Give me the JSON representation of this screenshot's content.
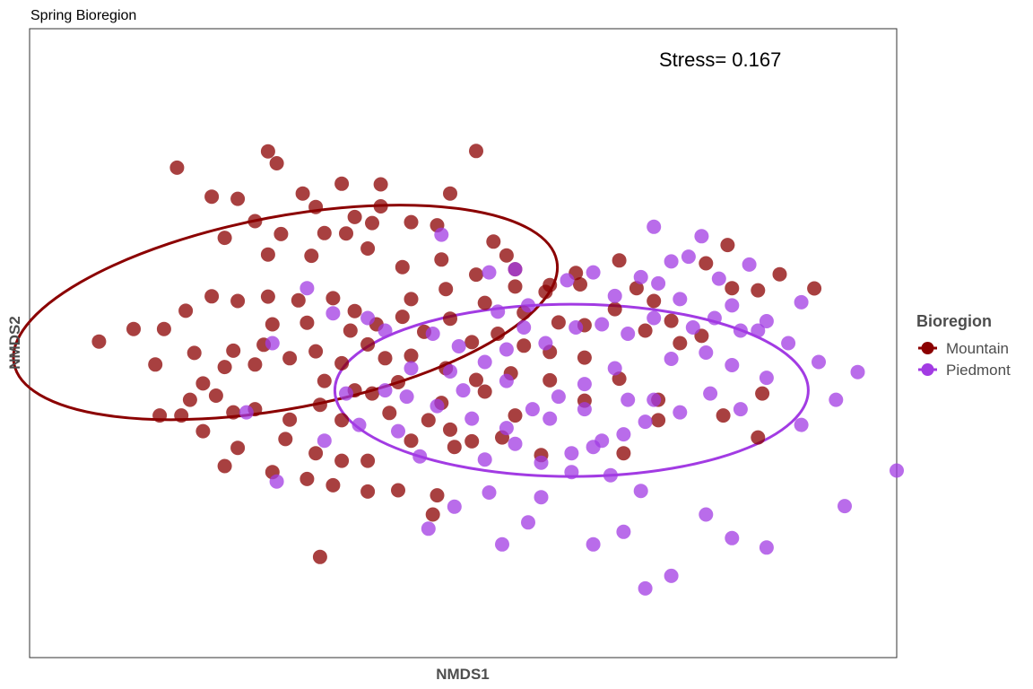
{
  "chart_data": {
    "type": "scatter",
    "title": "Spring Bioregion",
    "xlabel": "NMDS1",
    "ylabel": "NMDS2",
    "xlim": [
      -1.0,
      1.0
    ],
    "ylim": [
      -1.0,
      1.0
    ],
    "grid": false,
    "annotation": "Stress= 0.167",
    "legend": {
      "title": "Bioregion",
      "position": "right"
    },
    "series": [
      {
        "name": "Mountain",
        "color": "#8B0000",
        "ellipse": {
          "cx": -0.41,
          "cy": 0.098,
          "rx": 0.637,
          "ry": 0.305,
          "angle_deg": 10.7
        },
        "points": [
          [
            -0.19,
            0.505
          ],
          [
            -0.37,
            0.476
          ],
          [
            -0.52,
            0.459
          ],
          [
            -0.48,
            0.388
          ],
          [
            -0.34,
            0.433
          ],
          [
            -0.25,
            0.401
          ],
          [
            -0.12,
            0.385
          ],
          [
            -0.06,
            0.375
          ],
          [
            0.07,
            0.323
          ],
          [
            -0.03,
            0.476
          ],
          [
            -0.19,
            0.435
          ],
          [
            -0.32,
            0.35
          ],
          [
            -0.42,
            0.347
          ],
          [
            -0.55,
            0.335
          ],
          [
            -0.45,
            0.282
          ],
          [
            -0.35,
            0.278
          ],
          [
            -0.22,
            0.301
          ],
          [
            -0.14,
            0.242
          ],
          [
            -0.05,
            0.266
          ],
          [
            0.03,
            0.218
          ],
          [
            0.12,
            0.235
          ],
          [
            0.19,
            0.163
          ],
          [
            0.26,
            0.223
          ],
          [
            0.35,
            0.108
          ],
          [
            0.4,
            0.175
          ],
          [
            0.44,
            0.134
          ],
          [
            0.36,
            0.263
          ],
          [
            0.42,
            0.04
          ],
          [
            0.48,
            0.071
          ],
          [
            0.5,
            0.0
          ],
          [
            0.55,
            0.023
          ],
          [
            -0.84,
            0.005
          ],
          [
            -0.76,
            0.045
          ],
          [
            -0.69,
            0.045
          ],
          [
            -0.64,
            0.103
          ],
          [
            -0.58,
            0.149
          ],
          [
            -0.52,
            0.134
          ],
          [
            -0.45,
            0.148
          ],
          [
            -0.38,
            0.136
          ],
          [
            -0.3,
            0.143
          ],
          [
            -0.25,
            0.102
          ],
          [
            -0.2,
            0.06
          ],
          [
            -0.14,
            0.084
          ],
          [
            -0.09,
            0.036
          ],
          [
            -0.03,
            0.078
          ],
          [
            0.02,
            0.003
          ],
          [
            0.08,
            0.03
          ],
          [
            0.14,
            -0.008
          ],
          [
            0.2,
            -0.028
          ],
          [
            0.28,
            -0.046
          ],
          [
            -0.71,
            -0.068
          ],
          [
            -0.62,
            -0.031
          ],
          [
            -0.55,
            -0.076
          ],
          [
            -0.48,
            -0.068
          ],
          [
            -0.4,
            -0.048
          ],
          [
            -0.34,
            -0.026
          ],
          [
            -0.28,
            -0.064
          ],
          [
            -0.22,
            -0.004
          ],
          [
            -0.18,
            -0.048
          ],
          [
            -0.12,
            -0.04
          ],
          [
            -0.04,
            -0.08
          ],
          [
            0.03,
            -0.117
          ],
          [
            0.11,
            -0.096
          ],
          [
            -0.57,
            -0.167
          ],
          [
            -0.48,
            -0.21
          ],
          [
            -0.4,
            -0.243
          ],
          [
            -0.33,
            -0.196
          ],
          [
            -0.28,
            -0.245
          ],
          [
            -0.21,
            -0.16
          ],
          [
            -0.17,
            -0.222
          ],
          [
            -0.08,
            -0.245
          ],
          [
            -0.03,
            -0.275
          ],
          [
            -0.12,
            -0.31
          ],
          [
            -0.52,
            -0.333
          ],
          [
            -0.41,
            -0.305
          ],
          [
            -0.34,
            -0.35
          ],
          [
            -0.28,
            -0.374
          ],
          [
            -0.22,
            -0.374
          ],
          [
            -0.55,
            -0.391
          ],
          [
            -0.44,
            -0.41
          ],
          [
            -0.36,
            -0.432
          ],
          [
            -0.3,
            -0.452
          ],
          [
            -0.22,
            -0.472
          ],
          [
            -0.15,
            -0.468
          ],
          [
            -0.06,
            -0.484
          ],
          [
            0.02,
            -0.312
          ],
          [
            0.18,
            -0.356
          ],
          [
            -0.6,
            -0.28
          ],
          [
            -0.65,
            -0.23
          ],
          [
            -0.7,
            -0.23
          ],
          [
            -0.6,
            -0.128
          ],
          [
            -0.53,
            -0.024
          ],
          [
            -0.46,
            -0.005
          ],
          [
            -0.44,
            0.06
          ],
          [
            -0.36,
            0.065
          ],
          [
            -0.26,
            0.04
          ],
          [
            -0.12,
            0.14
          ],
          [
            -0.04,
            0.172
          ],
          [
            0.05,
            0.128
          ],
          [
            0.14,
            0.097
          ],
          [
            0.22,
            0.066
          ],
          [
            0.28,
            0.057
          ],
          [
            -0.32,
            -0.12
          ],
          [
            -0.25,
            -0.15
          ],
          [
            -0.15,
            -0.124
          ],
          [
            -0.05,
            -0.19
          ],
          [
            0.05,
            -0.154
          ],
          [
            0.12,
            -0.23
          ],
          [
            0.2,
            -0.118
          ],
          [
            0.28,
            -0.183
          ],
          [
            0.36,
            -0.113
          ],
          [
            0.45,
            -0.18
          ],
          [
            0.61,
            0.312
          ],
          [
            0.73,
            0.219
          ],
          [
            0.68,
            0.168
          ],
          [
            0.81,
            0.174
          ],
          [
            0.56,
            0.254
          ],
          [
            0.62,
            0.175
          ],
          [
            -0.07,
            -0.545
          ],
          [
            -0.43,
            0.572
          ],
          [
            0.03,
            0.611
          ],
          [
            -0.28,
            0.507
          ],
          [
            -0.33,
            -0.68
          ],
          [
            -0.66,
            0.558
          ],
          [
            -0.58,
            0.466
          ],
          [
            -0.45,
            0.61
          ],
          [
            -0.21,
            0.382
          ],
          [
            -0.27,
            0.349
          ],
          [
            0.1,
            0.279
          ],
          [
            0.27,
            0.187
          ],
          [
            0.09,
            -0.3
          ],
          [
            -0.02,
            -0.33
          ],
          [
            0.6,
            -0.23
          ],
          [
            0.69,
            -0.16
          ],
          [
            0.68,
            -0.3
          ],
          [
            0.45,
            -0.245
          ],
          [
            0.37,
            -0.35
          ],
          [
            0.2,
            0.185
          ],
          [
            0.12,
            0.18
          ],
          [
            -0.53,
            -0.22
          ],
          [
            -0.63,
            -0.18
          ]
        ]
      },
      {
        "name": "Piedmont",
        "color": "#A23BE3",
        "ellipse": {
          "cx": 0.25,
          "cy": -0.15,
          "rx": 0.546,
          "ry": 0.274,
          "angle_deg": 0
        },
        "points": [
          [
            1.0,
            -0.405
          ],
          [
            0.91,
            -0.092
          ],
          [
            0.82,
            -0.06
          ],
          [
            0.7,
            -0.11
          ],
          [
            0.62,
            -0.07
          ],
          [
            0.56,
            -0.03
          ],
          [
            0.48,
            -0.05
          ],
          [
            0.44,
            -0.18
          ],
          [
            0.35,
            -0.08
          ],
          [
            0.28,
            -0.13
          ],
          [
            0.22,
            -0.17
          ],
          [
            0.16,
            -0.21
          ],
          [
            0.1,
            -0.27
          ],
          [
            0.02,
            -0.24
          ],
          [
            -0.06,
            -0.2
          ],
          [
            -0.13,
            -0.17
          ],
          [
            -0.18,
            -0.15
          ],
          [
            -0.24,
            -0.26
          ],
          [
            -0.27,
            -0.16
          ],
          [
            -0.32,
            -0.31
          ],
          [
            0.05,
            -0.37
          ],
          [
            0.12,
            -0.32
          ],
          [
            0.18,
            -0.38
          ],
          [
            0.25,
            -0.41
          ],
          [
            0.3,
            -0.33
          ],
          [
            0.37,
            -0.29
          ],
          [
            0.42,
            -0.25
          ],
          [
            0.5,
            -0.22
          ],
          [
            0.57,
            -0.16
          ],
          [
            0.64,
            -0.21
          ],
          [
            0.78,
            -0.26
          ],
          [
            0.86,
            -0.18
          ],
          [
            0.78,
            0.13
          ],
          [
            0.7,
            0.07
          ],
          [
            0.64,
            0.04
          ],
          [
            0.58,
            0.08
          ],
          [
            0.5,
            0.14
          ],
          [
            0.44,
            0.08
          ],
          [
            0.38,
            0.03
          ],
          [
            0.32,
            0.06
          ],
          [
            0.26,
            0.05
          ],
          [
            0.19,
            0.0
          ],
          [
            0.14,
            0.05
          ],
          [
            0.1,
            -0.02
          ],
          [
            0.05,
            -0.06
          ],
          [
            -0.01,
            -0.01
          ],
          [
            -0.07,
            0.03
          ],
          [
            -0.12,
            -0.08
          ],
          [
            -0.18,
            0.04
          ],
          [
            -0.22,
            0.08
          ],
          [
            0.24,
            0.2
          ],
          [
            0.3,
            0.225
          ],
          [
            0.41,
            0.21
          ],
          [
            0.52,
            0.275
          ],
          [
            0.59,
            0.205
          ],
          [
            0.44,
            0.37
          ],
          [
            0.55,
            0.34
          ],
          [
            0.12,
            0.235
          ],
          [
            0.06,
            0.225
          ],
          [
            -0.05,
            0.345
          ],
          [
            -0.3,
            0.095
          ],
          [
            -0.36,
            0.175
          ],
          [
            -0.44,
            0.0
          ],
          [
            -0.5,
            -0.22
          ],
          [
            -0.43,
            -0.44
          ],
          [
            0.06,
            -0.475
          ],
          [
            0.41,
            -0.47
          ],
          [
            0.88,
            -0.518
          ],
          [
            0.09,
            -0.64
          ],
          [
            0.56,
            -0.545
          ],
          [
            0.62,
            -0.62
          ],
          [
            0.7,
            -0.65
          ],
          [
            0.48,
            -0.74
          ],
          [
            0.42,
            -0.78
          ],
          [
            0.37,
            -0.6
          ],
          [
            0.3,
            -0.64
          ],
          [
            0.15,
            -0.57
          ],
          [
            -0.08,
            -0.59
          ],
          [
            -0.02,
            -0.52
          ],
          [
            0.18,
            -0.49
          ],
          [
            0.25,
            -0.35
          ],
          [
            0.1,
            -0.12
          ],
          [
            0.15,
            0.12
          ],
          [
            0.35,
            0.15
          ],
          [
            0.48,
            0.26
          ],
          [
            0.66,
            0.25
          ],
          [
            0.38,
            -0.18
          ],
          [
            0.32,
            -0.31
          ],
          [
            -0.1,
            -0.36
          ],
          [
            -0.03,
            -0.09
          ],
          [
            0.08,
            0.1
          ],
          [
            0.68,
            0.04
          ],
          [
            0.62,
            0.12
          ],
          [
            0.75,
            0.0
          ],
          [
            0.53,
            0.05
          ],
          [
            0.45,
            0.19
          ],
          [
            0.2,
            -0.24
          ],
          [
            0.28,
            -0.21
          ],
          [
            0.0,
            -0.15
          ],
          [
            -0.15,
            -0.28
          ],
          [
            0.34,
            -0.42
          ]
        ]
      }
    ]
  }
}
